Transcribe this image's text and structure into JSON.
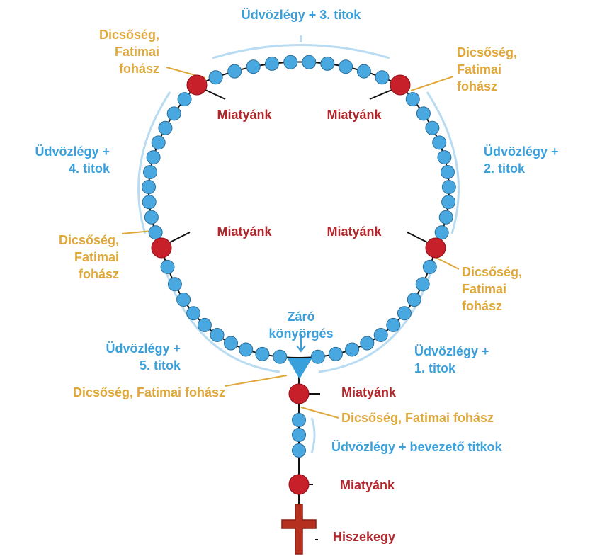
{
  "labels": [
    [
      "Üdvözlégy + 3. titok"
    ],
    [
      "Dicsőség,",
      "Fatimai",
      "fohász"
    ],
    [
      "Dicsőség,",
      "Fatimai",
      "fohász"
    ],
    [
      "Miatyánk"
    ],
    [
      "Miatyánk"
    ],
    [
      "Üdvözlégy +",
      "4. titok"
    ],
    [
      "Üdvözlégy +",
      "2. titok"
    ],
    [
      "Miatyánk"
    ],
    [
      "Miatyánk"
    ],
    [
      "Dicsőség,",
      "Fatimai",
      "fohász"
    ],
    [
      "Dicsőség,",
      "Fatimai",
      "fohász"
    ],
    [
      "Záró",
      "könyörgés"
    ],
    [
      "Üdvözlégy +",
      "5. titok"
    ],
    [
      "Üdvözlégy +",
      "1. titok"
    ],
    [
      "Dicsőség, Fatimai fohász"
    ],
    [
      "Miatyánk"
    ],
    [
      "Dicsőség, Fatimai fohász"
    ],
    [
      "Üdvözlégy + bevezető titkok"
    ],
    [
      "Miatyánk"
    ],
    [
      "Hiszekegy"
    ]
  ]
}
